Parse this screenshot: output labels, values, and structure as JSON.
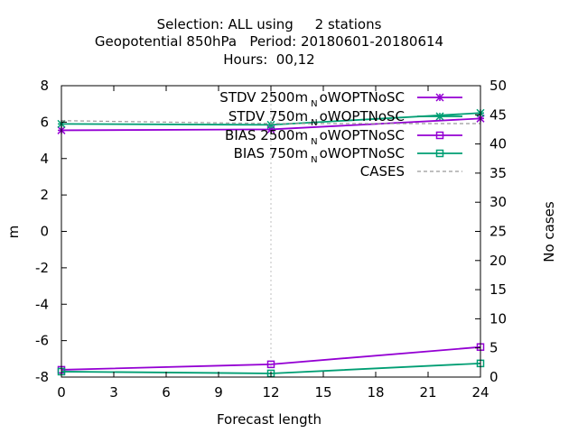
{
  "chart_data": {
    "type": "line",
    "title_lines": [
      "Selection: ALL using     2 stations",
      "Geopotential 850hPa   Period: 20180601-20180614",
      "Hours:  00,12"
    ],
    "xlabel": "Forecast length",
    "ylabel": "m",
    "y2label": "No cases",
    "xlim": [
      0,
      24
    ],
    "ylim": [
      -8,
      8
    ],
    "y2lim": [
      0,
      50
    ],
    "xticks": [
      0,
      3,
      6,
      9,
      12,
      15,
      18,
      21,
      24
    ],
    "yticks": [
      -8,
      -6,
      -4,
      -2,
      0,
      2,
      4,
      6,
      8
    ],
    "y2ticks": [
      0,
      5,
      10,
      15,
      20,
      25,
      30,
      35,
      40,
      45,
      50
    ],
    "grid": "x-only, dashed, at 12",
    "legend_position": "top-right",
    "series": [
      {
        "name": "STDV 2500m",
        "name_sub": "N",
        "name_rest": "oWOPTNoSC",
        "axis": "y",
        "color": "#9400d3",
        "marker": "star",
        "dash": "solid",
        "x": [
          0,
          12,
          24
        ],
        "y": [
          5.55,
          5.6,
          6.2
        ]
      },
      {
        "name": "STDV 750m",
        "name_sub": "N",
        "name_rest": "oWOPTNoSC",
        "axis": "y",
        "color": "#009e73",
        "marker": "star",
        "dash": "solid",
        "x": [
          0,
          12,
          24
        ],
        "y": [
          5.9,
          5.85,
          6.5
        ]
      },
      {
        "name": "BIAS 2500m",
        "name_sub": "N",
        "name_rest": "oWOPTNoSC",
        "axis": "y",
        "color": "#9400d3",
        "marker": "square",
        "dash": "solid",
        "x": [
          0,
          12,
          24
        ],
        "y": [
          -7.6,
          -7.3,
          -6.35
        ]
      },
      {
        "name": "BIAS 750m",
        "name_sub": "N",
        "name_rest": "oWOPTNoSC",
        "axis": "y",
        "color": "#009e73",
        "marker": "square",
        "dash": "solid",
        "x": [
          0,
          12,
          24
        ],
        "y": [
          -7.7,
          -7.8,
          -7.25
        ]
      },
      {
        "name": "CASES",
        "name_sub": "",
        "name_rest": "",
        "axis": "y2",
        "color": "#999999",
        "marker": "none",
        "dash": "dashed",
        "x": [
          0,
          12,
          24
        ],
        "y": [
          44,
          43.5,
          43.5
        ]
      }
    ]
  }
}
